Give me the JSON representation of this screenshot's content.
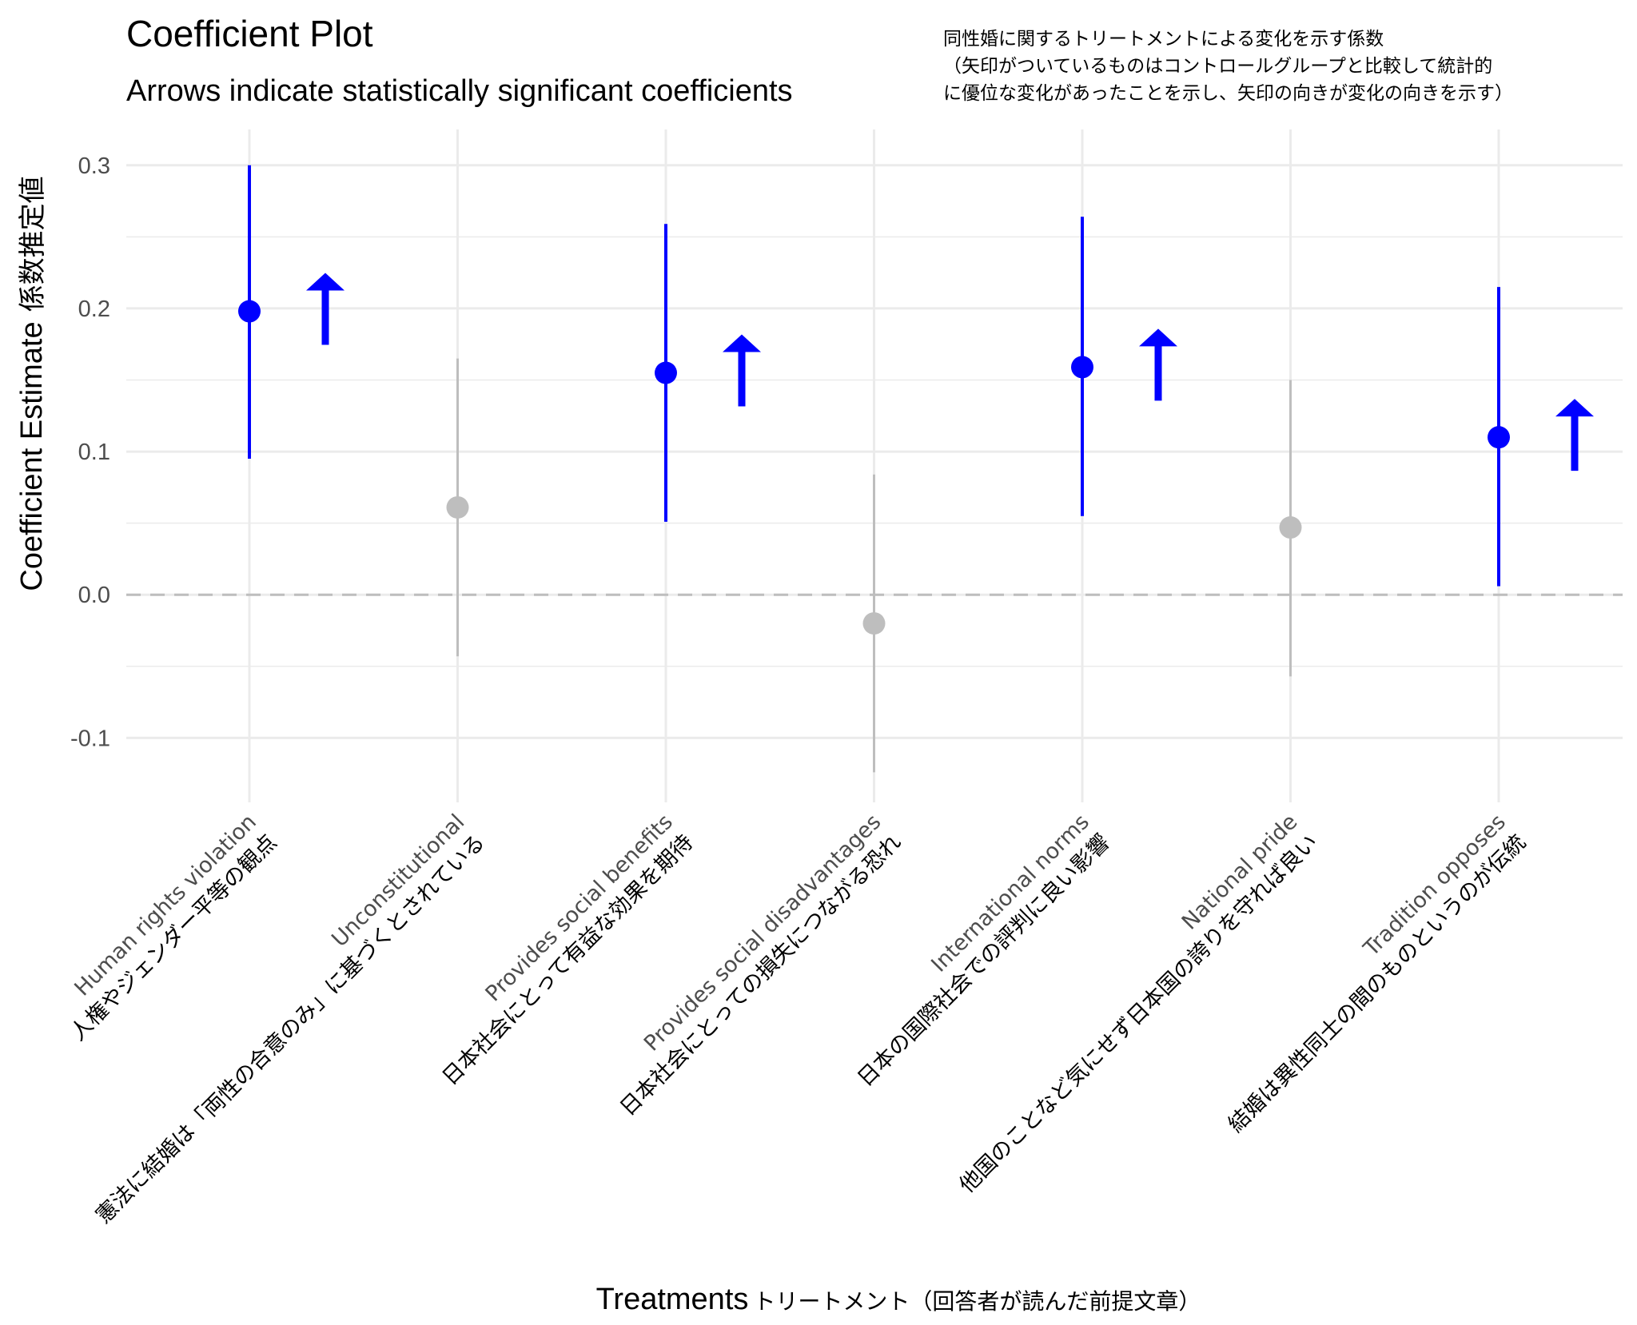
{
  "chart_data": {
    "type": "scatter",
    "title": "Coefficient Plot",
    "subtitle": "Arrows indicate statistically significant coefficients",
    "note_lines": [
      "同性婚に関するトリートメントによる変化を示す係数",
      "（矢印がついているものはコントロールグループと比較して統計的",
      "に優位な変化があったことを示し、矢印の向きが変化の向きを示す）"
    ],
    "ylabel": "Coefficient Estimate",
    "ylabel_ja": "係数推定値",
    "xlabel": "Treatments",
    "xlabel_ja": "トリートメント（回答者が読んだ前提文章）",
    "ylim": [
      -0.145,
      0.325
    ],
    "yticks": [
      0.3,
      0.2,
      0.1,
      0.0,
      -0.1
    ],
    "ytick_labels": [
      "0.3",
      "0.2",
      "0.1",
      "0.0",
      "-0.1"
    ],
    "reference_line": 0.0,
    "colors": {
      "significant": "#0000ff",
      "not_significant": "#bebebe",
      "grid": "#ebebeb",
      "zero_line": "#bebebe"
    },
    "categories": [
      "Human rights violation",
      "Unconstitutional",
      "Provides social benefits",
      "Provides social disadvantages",
      "International norms",
      "National pride",
      "Tradition opposes"
    ],
    "categories_ja": [
      "人権やジェンダー平等の観点",
      "憲法に結婚は「両性の合意のみ」に基づくとされている",
      "日本社会にとって有益な効果を期待",
      "日本社会にとっての損失につながる恐れ",
      "日本の国際社会での評判に良い影響",
      "他国のことなど気にせず日本国の誇りを守れば良い",
      "結婚は異性同士の間のものというのが伝統"
    ],
    "series": [
      {
        "estimate": [
          0.198,
          0.061,
          0.155,
          -0.02,
          0.159,
          0.047,
          0.11
        ],
        "lower": [
          0.095,
          -0.043,
          0.051,
          -0.124,
          0.055,
          -0.057,
          0.006
        ],
        "upper": [
          0.3,
          0.165,
          0.259,
          0.084,
          0.264,
          0.15,
          0.215
        ],
        "significant": [
          true,
          false,
          true,
          false,
          true,
          false,
          true
        ],
        "arrow_direction": [
          "up",
          "",
          "up",
          "",
          "up",
          "",
          "up"
        ]
      }
    ],
    "grid": true,
    "legend": "none"
  }
}
